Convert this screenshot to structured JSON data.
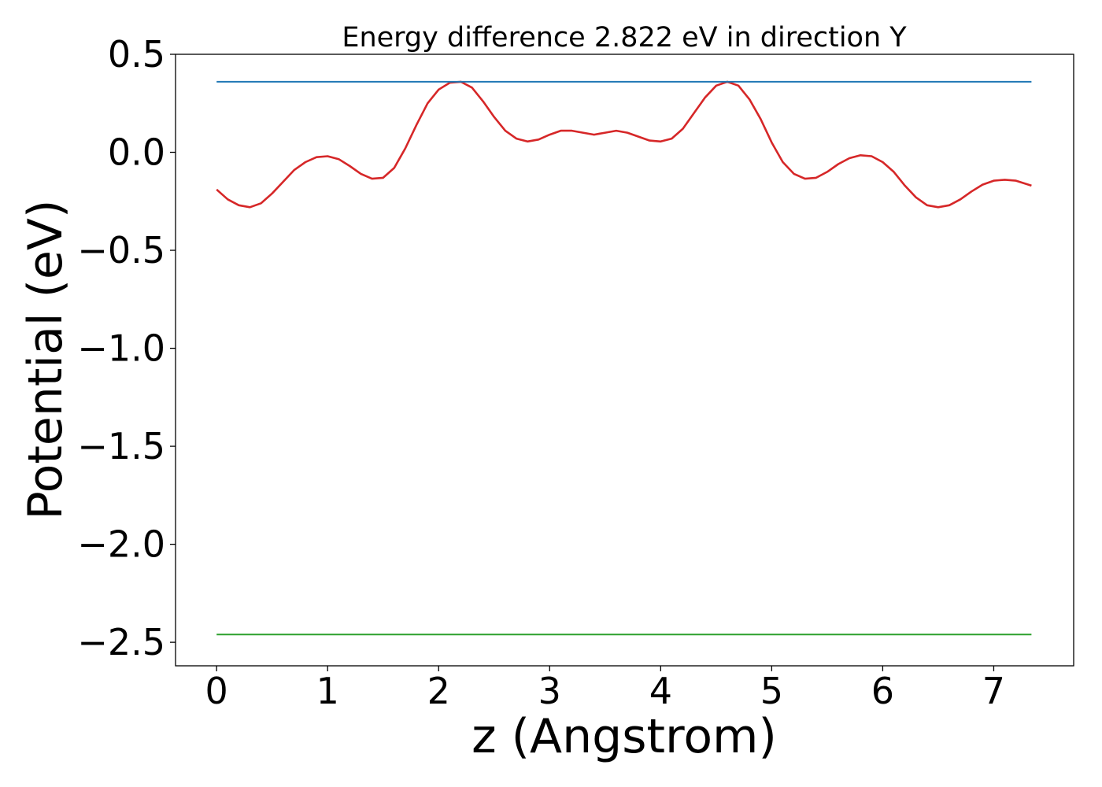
{
  "chart_data": {
    "type": "line",
    "title": "Energy difference 2.822 eV in direction Y",
    "xlabel": "z (Angstrom)",
    "ylabel": "Potential (eV)",
    "xlim": [
      -0.37,
      7.72
    ],
    "ylim": [
      -2.62,
      0.5
    ],
    "xticks": [
      0,
      1,
      2,
      3,
      4,
      5,
      6,
      7
    ],
    "xtick_labels": [
      "0",
      "1",
      "2",
      "3",
      "4",
      "5",
      "6",
      "7"
    ],
    "yticks": [
      0.5,
      0.0,
      -0.5,
      -1.0,
      -1.5,
      -2.0,
      -2.5
    ],
    "ytick_labels": [
      "0.5",
      "0.0",
      "−0.5",
      "−1.0",
      "−1.5",
      "−2.0",
      "−2.5"
    ],
    "grid": false,
    "legend": "none",
    "series": [
      {
        "color": "#d62728",
        "x": [
          0.0,
          0.1,
          0.2,
          0.3,
          0.4,
          0.5,
          0.6,
          0.7,
          0.8,
          0.9,
          1.0,
          1.1,
          1.2,
          1.3,
          1.4,
          1.5,
          1.6,
          1.7,
          1.8,
          1.9,
          2.0,
          2.1,
          2.2,
          2.3,
          2.4,
          2.5,
          2.6,
          2.7,
          2.8,
          2.9,
          3.0,
          3.1,
          3.2,
          3.3,
          3.4,
          3.5,
          3.6,
          3.7,
          3.8,
          3.9,
          4.0,
          4.1,
          4.2,
          4.3,
          4.4,
          4.5,
          4.6,
          4.7,
          4.8,
          4.9,
          5.0,
          5.1,
          5.2,
          5.3,
          5.4,
          5.5,
          5.6,
          5.7,
          5.8,
          5.9,
          6.0,
          6.1,
          6.2,
          6.3,
          6.4,
          6.5,
          6.6,
          6.7,
          6.8,
          6.9,
          7.0,
          7.1,
          7.2,
          7.34
        ],
        "y": [
          -0.19,
          -0.24,
          -0.27,
          -0.28,
          -0.26,
          -0.21,
          -0.15,
          -0.09,
          -0.05,
          -0.025,
          -0.02,
          -0.035,
          -0.07,
          -0.11,
          -0.135,
          -0.13,
          -0.08,
          0.02,
          0.14,
          0.25,
          0.32,
          0.355,
          0.36,
          0.33,
          0.26,
          0.18,
          0.11,
          0.07,
          0.055,
          0.065,
          0.09,
          0.11,
          0.11,
          0.1,
          0.09,
          0.1,
          0.11,
          0.1,
          0.08,
          0.06,
          0.055,
          0.07,
          0.12,
          0.2,
          0.28,
          0.34,
          0.36,
          0.34,
          0.27,
          0.17,
          0.05,
          -0.05,
          -0.11,
          -0.135,
          -0.13,
          -0.1,
          -0.06,
          -0.03,
          -0.015,
          -0.02,
          -0.05,
          -0.1,
          -0.17,
          -0.23,
          -0.27,
          -0.28,
          -0.27,
          -0.24,
          -0.2,
          -0.165,
          -0.145,
          -0.14,
          -0.145,
          -0.17
        ]
      },
      {
        "color": "#1f77b4",
        "x": [
          0.0,
          7.34
        ],
        "y": [
          0.36,
          0.36
        ]
      },
      {
        "color": "#2ca02c",
        "x": [
          0.0,
          7.34
        ],
        "y": [
          -2.46,
          -2.46
        ]
      }
    ]
  }
}
